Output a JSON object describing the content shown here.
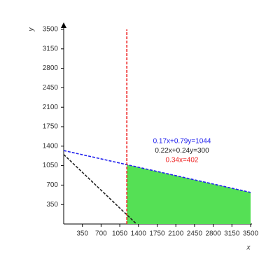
{
  "chart_data": {
    "type": "line",
    "x_label": "x",
    "y_label": "y",
    "xlim": [
      0,
      3500
    ],
    "ylim": [
      0,
      3500
    ],
    "xticks": [
      350,
      700,
      1050,
      1400,
      1750,
      2100,
      2450,
      2800,
      3150,
      3500
    ],
    "yticks": [
      350,
      700,
      1050,
      1400,
      1750,
      2100,
      2450,
      2800,
      3150,
      3500
    ],
    "series": [
      {
        "name": "0.17x+0.79y=1044",
        "color": "#2222ee",
        "x": [
          0,
          3500
        ],
        "values": [
          1321.5,
          568.4
        ]
      },
      {
        "name": "0.22x+0.24y=300",
        "color": "#222222",
        "x": [
          0,
          1363.6
        ],
        "values": [
          1250,
          0
        ]
      },
      {
        "name": "0.34x=402",
        "color": "#ee2222",
        "x": [
          1182.4,
          1182.4
        ],
        "values": [
          0,
          3500
        ]
      }
    ],
    "region": {
      "color": "#55e055",
      "x": [
        1182.4,
        1182.4,
        3500,
        3500
      ],
      "y": [
        0,
        1067.1,
        568.4,
        0
      ]
    }
  }
}
